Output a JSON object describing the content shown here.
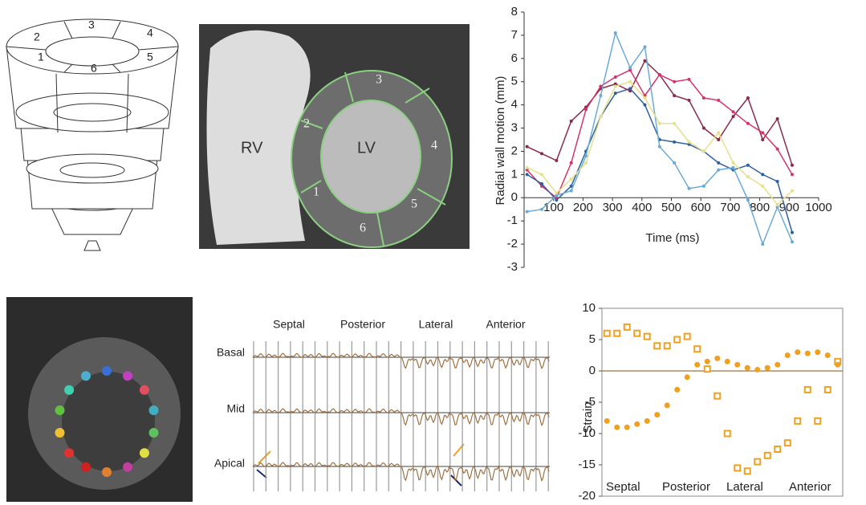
{
  "panel_a": {
    "segment_labels": [
      "1",
      "2",
      "3",
      "4",
      "5",
      "6"
    ]
  },
  "panel_b": {
    "labels": [
      "RV",
      "LV"
    ],
    "segment_labels": [
      "1",
      "2",
      "3",
      "4",
      "5",
      "6"
    ]
  },
  "panel_e": {
    "columns": [
      "Septal",
      "Posterior",
      "Lateral",
      "Anterior"
    ],
    "rows": [
      "Basal",
      "Mid",
      "Apical"
    ]
  },
  "chart_data": [
    {
      "type": "line",
      "xlabel": "Time (ms)",
      "ylabel": "Radial wall motion (mm)",
      "x": [
        10,
        60,
        110,
        160,
        210,
        260,
        310,
        360,
        410,
        460,
        510,
        560,
        610,
        660,
        710,
        760,
        810,
        860,
        910
      ],
      "xlim": [
        0,
        1000
      ],
      "xticks": [
        100,
        200,
        300,
        400,
        500,
        600,
        700,
        800,
        900,
        1000
      ],
      "ylim": [
        -3,
        8
      ],
      "yticks": [
        -3,
        -2,
        -1,
        0,
        1,
        2,
        3,
        4,
        5,
        6,
        7,
        8
      ],
      "series": [
        {
          "color": "#8a2a45",
          "values": [
            2.2,
            1.9,
            1.6,
            3.3,
            3.9,
            4.7,
            4.9,
            4.6,
            5.9,
            5.3,
            4.4,
            4.2,
            3.0,
            2.5,
            3.5,
            4.3,
            2.5,
            3.4,
            1.4
          ]
        },
        {
          "color": "#d6336b",
          "values": [
            1.2,
            0.5,
            0.0,
            1.5,
            3.8,
            4.8,
            5.2,
            5.5,
            4.4,
            5.3,
            5.0,
            5.1,
            4.3,
            4.2,
            3.7,
            3.2,
            2.8,
            2.1,
            1.0
          ]
        },
        {
          "color": "#2e5f9e",
          "values": [
            1.0,
            0.6,
            -0.1,
            0.5,
            2.0,
            3.5,
            4.5,
            4.7,
            4.0,
            2.5,
            2.4,
            2.3,
            2.0,
            1.5,
            1.2,
            1.4,
            1.0,
            0.7,
            -1.5
          ]
        },
        {
          "color": "#6aaad8",
          "values": [
            -0.6,
            -0.5,
            0.1,
            0.3,
            1.8,
            4.4,
            7.1,
            5.6,
            6.5,
            2.2,
            1.5,
            0.4,
            0.5,
            1.2,
            1.3,
            -0.1,
            -2.0,
            -0.4,
            -1.9
          ]
        },
        {
          "color": "#e6e08a",
          "values": [
            1.3,
            1.0,
            0.2,
            0.8,
            1.5,
            3.5,
            4.8,
            5.0,
            4.3,
            3.2,
            3.2,
            2.4,
            2.0,
            2.8,
            1.5,
            0.9,
            0.5,
            -0.3,
            0.3
          ]
        }
      ]
    },
    {
      "type": "scatter",
      "ylabel": "Strain",
      "annotations": [
        "Septal",
        "Posterior",
        "Lateral",
        "Anterior"
      ],
      "categories": [
        null,
        null,
        null,
        null,
        null,
        null,
        null,
        null,
        null,
        null,
        null,
        null,
        null,
        null,
        null,
        null,
        null,
        null,
        null,
        null,
        null,
        null,
        null,
        null
      ],
      "ylim": [
        -20,
        10
      ],
      "yticks": [
        -20,
        -15,
        -10,
        -5,
        0,
        5,
        10
      ],
      "series": [
        {
          "color": "#f0a020",
          "marker": "square",
          "values": [
            6,
            6,
            7,
            6,
            5.5,
            4,
            4,
            5,
            5.5,
            3.5,
            0.3,
            -4,
            -10,
            -15.5,
            -16,
            -14.5,
            -13.5,
            -12.5,
            -11.5,
            -8,
            -3,
            -8,
            -3,
            1.5
          ]
        },
        {
          "color": "#f0a020",
          "marker": "circle",
          "values": [
            -8,
            -9,
            -9,
            -8.5,
            -8,
            -7,
            -5.5,
            -3,
            -1,
            1,
            1.5,
            2,
            1.5,
            1,
            0.5,
            0.2,
            0.5,
            1,
            2.5,
            3,
            2.8,
            3,
            2.5,
            1
          ]
        }
      ]
    }
  ]
}
